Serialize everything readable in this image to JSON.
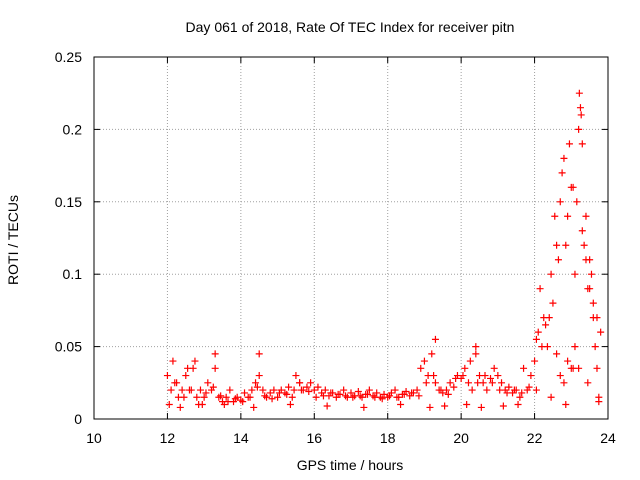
{
  "chart_data": {
    "type": "scatter",
    "title": "Day 061 of 2018, Rate Of TEC Index for receiver pitn",
    "xlabel": "GPS time / hours",
    "ylabel": "ROTI / TECUs",
    "xlim": [
      10,
      24
    ],
    "ylim": [
      0,
      0.25
    ],
    "x_ticks": [
      10,
      12,
      14,
      16,
      18,
      20,
      22,
      24
    ],
    "y_ticks": [
      0,
      0.05,
      0.1,
      0.15,
      0.2,
      0.25
    ],
    "x_tick_labels": [
      "10",
      "12",
      "14",
      "16",
      "18",
      "20",
      "22",
      "24"
    ],
    "y_tick_labels": [
      "0",
      "0.05",
      "0.1",
      "0.15",
      "0.2",
      "0.25"
    ],
    "grid": true,
    "marker": "plus",
    "color": "#ff0000",
    "series": [
      {
        "name": "ROTI",
        "x": [
          12.0,
          12.1,
          12.2,
          12.3,
          12.4,
          12.5,
          12.6,
          12.7,
          12.8,
          12.9,
          13.0,
          13.1,
          13.2,
          13.3,
          13.4,
          13.5,
          13.6,
          13.7,
          13.8,
          13.9,
          14.0,
          14.1,
          14.2,
          14.3,
          14.4,
          14.5,
          14.6,
          14.7,
          14.8,
          14.9,
          15.0,
          15.1,
          15.2,
          15.3,
          15.4,
          15.5,
          15.6,
          15.7,
          15.8,
          15.9,
          16.0,
          16.1,
          16.2,
          16.3,
          16.4,
          16.5,
          16.6,
          16.7,
          16.8,
          16.9,
          17.0,
          17.1,
          17.2,
          17.3,
          17.4,
          17.5,
          17.6,
          17.7,
          17.8,
          17.9,
          18.0,
          18.1,
          18.2,
          18.3,
          18.4,
          18.5,
          18.6,
          18.7,
          18.8,
          18.9,
          19.0,
          19.1,
          19.2,
          19.3,
          19.4,
          19.5,
          19.6,
          19.7,
          19.8,
          19.9,
          20.0,
          20.1,
          20.2,
          20.3,
          20.4,
          20.5,
          20.6,
          20.7,
          20.8,
          20.9,
          21.0,
          21.1,
          21.2,
          21.3,
          21.4,
          21.5,
          21.6,
          21.7,
          21.8,
          21.9,
          22.0,
          22.1,
          22.2,
          22.3,
          22.4,
          22.5,
          22.6,
          22.7,
          22.8,
          22.9,
          23.0,
          23.1,
          23.2,
          23.3,
          23.4,
          23.5,
          23.6,
          23.7,
          23.8,
          12.05,
          12.25,
          12.45,
          12.65,
          12.85,
          13.05,
          13.25,
          13.45,
          13.65,
          13.85,
          14.05,
          14.25,
          14.45,
          14.65,
          14.85,
          15.05,
          15.25,
          15.45,
          15.65,
          15.85,
          16.05,
          16.25,
          16.45,
          16.65,
          16.85,
          17.05,
          17.25,
          17.45,
          17.65,
          17.85,
          18.05,
          18.25,
          18.45,
          18.65,
          18.85,
          19.05,
          19.25,
          19.45,
          19.65,
          19.85,
          20.05,
          20.25,
          20.45,
          20.65,
          20.85,
          21.05,
          21.25,
          21.45,
          21.65,
          21.85,
          22.05,
          22.15,
          22.25,
          22.35,
          22.45,
          22.55,
          22.65,
          22.75,
          22.85,
          22.95,
          23.05,
          23.15,
          23.22,
          23.27,
          23.35,
          23.45,
          23.55,
          23.65,
          23.75,
          12.15,
          12.55,
          12.75,
          13.3,
          14.5,
          15.6,
          19.3,
          20.4,
          22.6,
          22.7,
          22.8,
          22.9,
          23.0,
          23.1,
          23.2,
          23.25,
          23.3,
          23.4,
          23.5,
          23.6,
          23.7,
          12.35,
          12.95,
          13.55,
          14.35,
          15.35,
          16.35,
          17.35,
          18.35,
          19.15,
          19.55,
          20.15,
          20.55,
          21.15,
          21.55,
          22.05,
          22.45,
          22.85,
          23.05,
          23.45,
          23.75
        ],
        "y": [
          0.03,
          0.02,
          0.025,
          0.015,
          0.02,
          0.03,
          0.02,
          0.035,
          0.015,
          0.02,
          0.015,
          0.025,
          0.02,
          0.035,
          0.015,
          0.012,
          0.015,
          0.02,
          0.012,
          0.015,
          0.013,
          0.018,
          0.015,
          0.02,
          0.025,
          0.03,
          0.02,
          0.015,
          0.018,
          0.02,
          0.015,
          0.02,
          0.018,
          0.022,
          0.015,
          0.03,
          0.025,
          0.02,
          0.022,
          0.025,
          0.02,
          0.022,
          0.018,
          0.02,
          0.016,
          0.018,
          0.015,
          0.017,
          0.02,
          0.015,
          0.018,
          0.016,
          0.019,
          0.015,
          0.017,
          0.02,
          0.016,
          0.018,
          0.015,
          0.017,
          0.015,
          0.018,
          0.02,
          0.015,
          0.017,
          0.019,
          0.016,
          0.018,
          0.02,
          0.035,
          0.04,
          0.03,
          0.045,
          0.025,
          0.02,
          0.018,
          0.02,
          0.025,
          0.022,
          0.03,
          0.028,
          0.035,
          0.025,
          0.02,
          0.045,
          0.03,
          0.025,
          0.02,
          0.028,
          0.035,
          0.03,
          0.025,
          0.02,
          0.022,
          0.018,
          0.02,
          0.015,
          0.035,
          0.02,
          0.03,
          0.04,
          0.06,
          0.05,
          0.065,
          0.07,
          0.08,
          0.12,
          0.15,
          0.18,
          0.14,
          0.16,
          0.1,
          0.2,
          0.13,
          0.11,
          0.09,
          0.08,
          0.07,
          0.06,
          0.01,
          0.025,
          0.015,
          0.02,
          0.01,
          0.018,
          0.022,
          0.016,
          0.012,
          0.014,
          0.012,
          0.015,
          0.022,
          0.016,
          0.014,
          0.018,
          0.017,
          0.02,
          0.02,
          0.019,
          0.015,
          0.016,
          0.018,
          0.017,
          0.016,
          0.015,
          0.016,
          0.017,
          0.015,
          0.014,
          0.016,
          0.015,
          0.017,
          0.018,
          0.016,
          0.025,
          0.03,
          0.02,
          0.017,
          0.028,
          0.03,
          0.04,
          0.025,
          0.03,
          0.025,
          0.02,
          0.018,
          0.02,
          0.018,
          0.022,
          0.055,
          0.09,
          0.07,
          0.05,
          0.1,
          0.14,
          0.11,
          0.17,
          0.12,
          0.19,
          0.16,
          0.15,
          0.225,
          0.21,
          0.12,
          0.09,
          0.1,
          0.05,
          0.015,
          0.04,
          0.035,
          0.04,
          0.045,
          0.045,
          0.025,
          0.055,
          0.05,
          0.045,
          0.03,
          0.025,
          0.04,
          0.035,
          0.05,
          0.035,
          0.215,
          0.19,
          0.14,
          0.11,
          0.07,
          0.035,
          0.008,
          0.01,
          0.01,
          0.008,
          0.01,
          0.009,
          0.008,
          0.01,
          0.008,
          0.009,
          0.01,
          0.008,
          0.009,
          0.01,
          0.02,
          0.015,
          0.01,
          0.035,
          0.025,
          0.012
        ]
      }
    ]
  }
}
